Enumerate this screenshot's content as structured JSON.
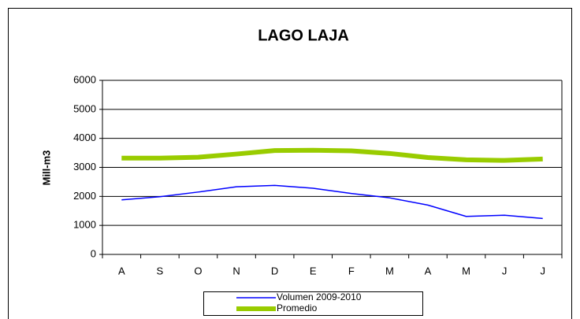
{
  "chart_data": {
    "type": "line",
    "title": "LAGO LAJA",
    "y_label": "Mill-m3",
    "categories": [
      "A",
      "S",
      "O",
      "N",
      "D",
      "E",
      "F",
      "M",
      "A",
      "M",
      "J",
      "J"
    ],
    "series": [
      {
        "name": "Volumen  2009-2010",
        "color": "#0000ff",
        "width": 1.5,
        "values": [
          1880,
          1990,
          2150,
          2330,
          2380,
          2280,
          2100,
          1950,
          1700,
          1310,
          1350,
          1240
        ]
      },
      {
        "name": "Promedio",
        "color": "#99cc00",
        "width": 6,
        "values": [
          3320,
          3320,
          3350,
          3460,
          3580,
          3590,
          3570,
          3480,
          3340,
          3260,
          3240,
          3290
        ]
      }
    ],
    "ylim": [
      0,
      6000
    ],
    "yticks": [
      0,
      1000,
      2000,
      3000,
      4000,
      5000,
      6000
    ],
    "grid": true
  }
}
